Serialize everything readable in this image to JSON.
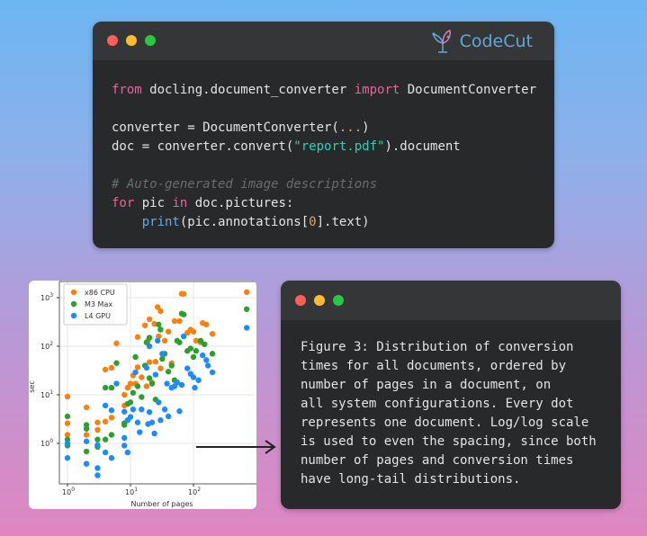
{
  "code_window": {
    "brand": "CodeCut",
    "lines": [
      [
        [
          "from",
          "kw"
        ],
        [
          " docling.document_converter ",
          ""
        ],
        [
          "import",
          "kw"
        ],
        [
          " DocumentConverter",
          ""
        ]
      ],
      [],
      [
        [
          "converter = DocumentConverter(",
          ""
        ],
        [
          "...",
          "num"
        ],
        [
          ")",
          ""
        ]
      ],
      [
        [
          "doc = converter.convert(",
          ""
        ],
        [
          "\"report.pdf\"",
          "str"
        ],
        [
          ").document",
          ""
        ]
      ],
      [],
      [
        [
          "# Auto-generated image descriptions",
          "cm"
        ]
      ],
      [
        [
          "for",
          "kw"
        ],
        [
          " pic ",
          ""
        ],
        [
          "in",
          "kw"
        ],
        [
          " doc.pictures:",
          ""
        ]
      ],
      [
        [
          "    ",
          ""
        ],
        [
          "print",
          "fn"
        ],
        [
          "(pic.annotations[",
          ""
        ],
        [
          "0",
          "num"
        ],
        [
          "].text)",
          ""
        ]
      ]
    ]
  },
  "description_window": {
    "lines": [
      "Figure 3: Distribution of conversion",
      "times for all documents, ordered by",
      "number of pages in a document, on",
      "all system configurations. Every dot",
      "represents one document. Log/log scale",
      "is used to even the spacing, since both",
      "number of pages and conversion times",
      "have long-tail distributions."
    ]
  },
  "chart_data": {
    "type": "scatter",
    "xlabel": "Number of pages",
    "ylabel": "sec",
    "xscale": "log",
    "yscale": "log",
    "xlim": [
      0.75,
      900
    ],
    "ylim": [
      0.15,
      2000
    ],
    "xticks": [
      "10^0",
      "10^1",
      "10^2"
    ],
    "yticks": [
      "10^0",
      "10^1",
      "10^2",
      "10^3"
    ],
    "grid": true,
    "legend": "top-left",
    "series": [
      {
        "name": "x86 CPU",
        "color": "#ff7f0e",
        "points": [
          [
            1,
            9.2
          ],
          [
            1,
            2.6
          ],
          [
            1,
            1.5
          ],
          [
            2,
            5.5
          ],
          [
            2,
            1.5
          ],
          [
            3,
            2.7
          ],
          [
            3,
            1.9
          ],
          [
            4,
            2.8
          ],
          [
            4,
            33
          ],
          [
            5,
            36
          ],
          [
            5,
            3.4
          ],
          [
            6,
            115
          ],
          [
            8,
            10
          ],
          [
            8,
            6
          ],
          [
            9,
            14
          ],
          [
            10,
            17
          ],
          [
            11,
            25
          ],
          [
            12,
            17
          ],
          [
            13,
            37
          ],
          [
            13,
            155
          ],
          [
            15,
            23
          ],
          [
            17,
            270
          ],
          [
            18,
            15
          ],
          [
            19,
            130
          ],
          [
            20,
            360
          ],
          [
            20,
            47
          ],
          [
            22,
            18
          ],
          [
            24,
            290
          ],
          [
            25,
            48
          ],
          [
            27,
            640
          ],
          [
            28,
            160
          ],
          [
            30,
            530
          ],
          [
            30,
            35
          ],
          [
            35,
            130
          ],
          [
            40,
            200
          ],
          [
            45,
            45
          ],
          [
            50,
            330
          ],
          [
            60,
            330
          ],
          [
            65,
            1200
          ],
          [
            70,
            1200
          ],
          [
            80,
            190
          ],
          [
            90,
            220
          ],
          [
            100,
            200
          ],
          [
            110,
            130
          ],
          [
            130,
            120
          ],
          [
            140,
            300
          ],
          [
            160,
            280
          ],
          [
            200,
            180
          ],
          [
            700,
            1300
          ]
        ]
      },
      {
        "name": "M3 Max",
        "color": "#2ca02c",
        "points": [
          [
            1,
            3.6
          ],
          [
            1,
            1.2
          ],
          [
            1,
            0.9
          ],
          [
            2,
            2.4
          ],
          [
            2,
            2.0
          ],
          [
            2,
            0.68
          ],
          [
            3,
            1.2
          ],
          [
            3,
            0.85
          ],
          [
            4,
            14
          ],
          [
            4,
            1.2
          ],
          [
            5,
            14
          ],
          [
            5,
            1.5
          ],
          [
            6,
            45
          ],
          [
            8,
            2.6
          ],
          [
            8,
            2.4
          ],
          [
            9,
            6.5
          ],
          [
            10,
            7
          ],
          [
            11,
            11
          ],
          [
            12,
            60
          ],
          [
            13,
            15
          ],
          [
            15,
            9
          ],
          [
            17,
            40
          ],
          [
            18,
            120
          ],
          [
            20,
            150
          ],
          [
            20,
            22
          ],
          [
            22,
            17
          ],
          [
            25,
            8
          ],
          [
            28,
            280
          ],
          [
            30,
            220
          ],
          [
            32,
            55
          ],
          [
            35,
            70
          ],
          [
            40,
            30
          ],
          [
            45,
            40
          ],
          [
            50,
            20
          ],
          [
            55,
            130
          ],
          [
            60,
            120
          ],
          [
            65,
            470
          ],
          [
            70,
            450
          ],
          [
            80,
            80
          ],
          [
            90,
            90
          ],
          [
            100,
            60
          ],
          [
            110,
            80
          ],
          [
            130,
            130
          ],
          [
            150,
            110
          ],
          [
            200,
            70
          ],
          [
            700,
            580
          ]
        ]
      },
      {
        "name": "L4 GPU",
        "color": "#1a8cff",
        "points": [
          [
            1,
            1.0
          ],
          [
            1,
            0.5
          ],
          [
            2,
            1.1
          ],
          [
            2,
            0.38
          ],
          [
            3,
            0.92
          ],
          [
            3,
            0.31
          ],
          [
            3,
            0.22
          ],
          [
            4,
            6
          ],
          [
            4,
            0.65
          ],
          [
            5,
            4.8
          ],
          [
            5,
            0.5
          ],
          [
            6,
            17
          ],
          [
            8,
            4.5
          ],
          [
            8,
            1.3
          ],
          [
            8,
            0.9
          ],
          [
            9,
            0.65
          ],
          [
            9,
            3
          ],
          [
            10,
            3.5
          ],
          [
            11,
            5
          ],
          [
            12,
            29
          ],
          [
            13,
            2.7
          ],
          [
            14,
            1.7
          ],
          [
            15,
            5
          ],
          [
            18,
            36
          ],
          [
            19,
            2.5
          ],
          [
            20,
            100
          ],
          [
            20,
            4.4
          ],
          [
            22,
            2.7
          ],
          [
            24,
            1.6
          ],
          [
            25,
            26
          ],
          [
            27,
            130
          ],
          [
            28,
            7
          ],
          [
            30,
            3
          ],
          [
            32,
            70
          ],
          [
            35,
            5
          ],
          [
            38,
            17
          ],
          [
            40,
            3.6
          ],
          [
            45,
            14
          ],
          [
            50,
            15
          ],
          [
            55,
            18
          ],
          [
            60,
            4.6
          ],
          [
            65,
            16
          ],
          [
            70,
            160
          ],
          [
            80,
            35
          ],
          [
            90,
            27
          ],
          [
            100,
            23
          ],
          [
            105,
            14
          ],
          [
            120,
            20
          ],
          [
            140,
            65
          ],
          [
            160,
            52
          ],
          [
            170,
            40
          ],
          [
            200,
            29
          ],
          [
            700,
            240
          ]
        ]
      }
    ]
  }
}
